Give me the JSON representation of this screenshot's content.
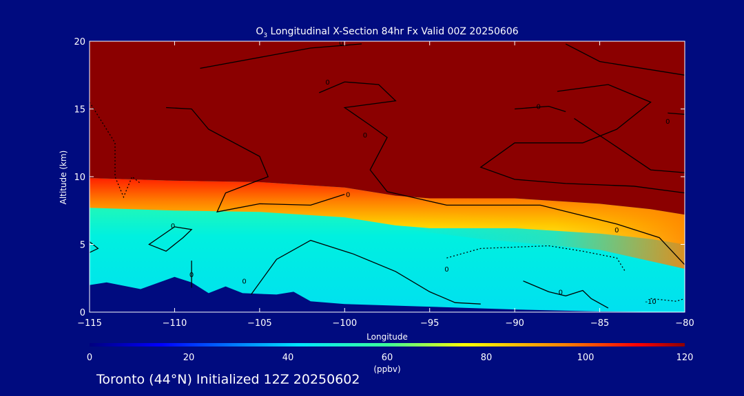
{
  "chart_data": {
    "type": "heatmap",
    "title": "O",
    "title_subscript": "3",
    "title_rest": " Longitudinal X-Section 84hr  Fx Valid 00Z 20250606",
    "xlabel": "Longitude",
    "ylabel": "Altitude (km)",
    "xlim": [
      -115,
      -80
    ],
    "ylim": [
      0,
      20
    ],
    "x_ticks": [
      -115,
      -110,
      -105,
      -100,
      -95,
      -90,
      -85,
      -80
    ],
    "x_tick_labels": [
      "−115",
      "−110",
      "−105",
      "−100",
      "−95",
      "−90",
      "−85",
      "−80"
    ],
    "y_ticks": [
      0,
      5,
      10,
      15,
      20
    ],
    "y_tick_labels": [
      "0",
      "5",
      "10",
      "15",
      "20"
    ],
    "colorbar": {
      "min": 0,
      "max": 120,
      "ticks": [
        0,
        20,
        40,
        60,
        80,
        100,
        120
      ],
      "tick_labels": [
        "0",
        "20",
        "40",
        "60",
        "80",
        "100",
        "120"
      ],
      "unit_label": "(ppbv)"
    },
    "terrain_top_km": [
      [
        -115,
        2.0
      ],
      [
        -114,
        2.2
      ],
      [
        -112,
        1.7
      ],
      [
        -110,
        2.6
      ],
      [
        -109,
        2.2
      ],
      [
        -108,
        1.4
      ],
      [
        -107,
        1.9
      ],
      [
        -106,
        1.4
      ],
      [
        -104,
        1.3
      ],
      [
        -103,
        1.5
      ],
      [
        -102,
        0.8
      ],
      [
        -100,
        0.6
      ],
      [
        -95,
        0.4
      ],
      [
        -90,
        0.2
      ],
      [
        -85,
        0.05
      ],
      [
        -80,
        0.0
      ]
    ],
    "tropopause_km": [
      [
        -115,
        9.9
      ],
      [
        -110,
        9.7
      ],
      [
        -105,
        9.6
      ],
      [
        -100,
        9.2
      ],
      [
        -97,
        8.6
      ],
      [
        -95,
        8.4
      ],
      [
        -90,
        8.4
      ],
      [
        -85,
        8.0
      ],
      [
        -82,
        7.6
      ],
      [
        -80,
        7.2
      ]
    ],
    "contour_labels": [
      "0",
      "0",
      "0",
      "0",
      "0",
      "0",
      "0",
      "0",
      "0",
      "0",
      "0",
      "0",
      "-10"
    ],
    "contour_lines": [
      [
        [
          -108.5,
          18.0
        ],
        [
          -102,
          19.5
        ],
        [
          -99,
          19.8
        ]
      ],
      [
        [
          -110.5,
          15.1
        ],
        [
          -109,
          15.0
        ],
        [
          -108,
          13.5
        ],
        [
          -105,
          11.5
        ],
        [
          -104.5,
          10.0
        ],
        [
          -107,
          8.8
        ],
        [
          -107.5,
          7.4
        ],
        [
          -105,
          8.0
        ],
        [
          -102,
          7.9
        ],
        [
          -100,
          8.7
        ]
      ],
      [
        [
          -101.5,
          16.2
        ],
        [
          -100,
          17.0
        ],
        [
          -98,
          16.8
        ],
        [
          -97,
          15.6
        ],
        [
          -100,
          15.1
        ],
        [
          -98.5,
          13.8
        ],
        [
          -97.5,
          12.9
        ],
        [
          -98.5,
          10.5
        ],
        [
          -97.5,
          8.9
        ],
        [
          -94,
          7.9
        ],
        [
          -88.5,
          7.9
        ],
        [
          -84,
          6.5
        ],
        [
          -81.5,
          5.5
        ],
        [
          -80,
          3.5
        ]
      ],
      [
        [
          -87,
          19.8
        ],
        [
          -85,
          18.5
        ],
        [
          -80,
          17.5
        ]
      ],
      [
        [
          -87.5,
          16.3
        ],
        [
          -84.5,
          16.8
        ],
        [
          -82,
          15.5
        ],
        [
          -84,
          13.5
        ],
        [
          -86,
          12.5
        ],
        [
          -90,
          12.5
        ],
        [
          -92,
          10.7
        ],
        [
          -90,
          9.8
        ],
        [
          -87,
          9.5
        ],
        [
          -83,
          9.3
        ],
        [
          -80,
          8.8
        ]
      ],
      [
        [
          -86.5,
          14.3
        ],
        [
          -84,
          12.2
        ],
        [
          -82,
          10.5
        ],
        [
          -80,
          10.3
        ]
      ],
      [
        [
          -81,
          14.7
        ],
        [
          -80,
          14.6
        ]
      ],
      [
        [
          -90,
          15.0
        ],
        [
          -88,
          15.2
        ],
        [
          -87,
          14.8
        ]
      ],
      [
        [
          -105.5,
          1.3
        ],
        [
          -104,
          3.9
        ],
        [
          -102,
          5.3
        ],
        [
          -99.5,
          4.3
        ],
        [
          -97,
          3.0
        ],
        [
          -95,
          1.5
        ],
        [
          -93.5,
          0.7
        ],
        [
          -92,
          0.6
        ]
      ],
      [
        [
          -110,
          6.3
        ],
        [
          -109,
          6.1
        ],
        [
          -109.5,
          5.5
        ],
        [
          -110.5,
          4.5
        ],
        [
          -111.5,
          5.0
        ],
        [
          -110,
          6.3
        ]
      ],
      [
        [
          -89.5,
          2.3
        ],
        [
          -88,
          1.5
        ],
        [
          -87,
          1.2
        ],
        [
          -86,
          1.6
        ],
        [
          -85.5,
          1.0
        ],
        [
          -84.5,
          0.3
        ]
      ],
      [
        [
          -109,
          1.8
        ],
        [
          -109,
          3.8
        ]
      ],
      [
        [
          -115,
          5.2
        ],
        [
          -114.5,
          4.7
        ],
        [
          -115,
          4.4
        ]
      ]
    ],
    "dotted_lines": [
      [
        [
          -115,
          15.5
        ],
        [
          -113.5,
          12.5
        ],
        [
          -113.5,
          10.0
        ],
        [
          -113,
          8.5
        ],
        [
          -112.5,
          10.0
        ],
        [
          -112,
          9.5
        ]
      ],
      [
        [
          -94,
          4.0
        ],
        [
          -92,
          4.7
        ],
        [
          -88,
          4.9
        ],
        [
          -86,
          4.5
        ],
        [
          -84,
          4.0
        ],
        [
          -83.5,
          3.0
        ]
      ],
      [
        [
          -82,
          1.0
        ],
        [
          -80.5,
          0.8
        ],
        [
          -80,
          1.0
        ]
      ]
    ],
    "footer": "Toronto (44°N) Initialized 12Z 20250602"
  }
}
